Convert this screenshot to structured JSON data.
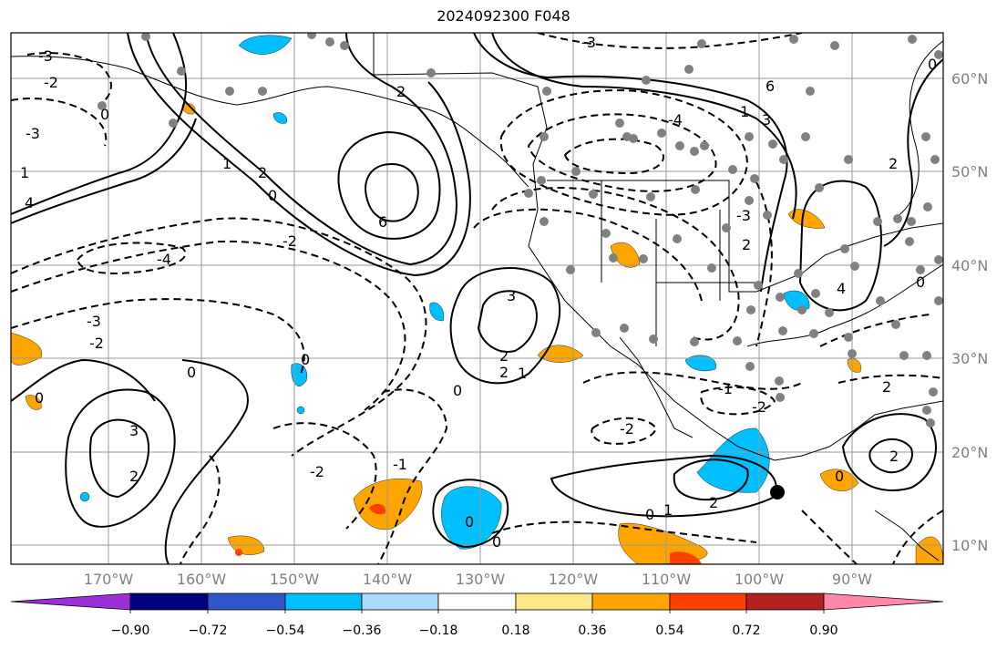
{
  "title": "2024092300 F048",
  "lat_labels": [
    "60°N",
    "50°N",
    "40°N",
    "30°N",
    "20°N",
    "10°N"
  ],
  "lon_labels": [
    "170°W",
    "160°W",
    "150°W",
    "140°W",
    "130°W",
    "120°W",
    "110°W",
    "100°W",
    "90°W"
  ],
  "colorbar": {
    "ticks": [
      "−0.90",
      "−0.72",
      "−0.54",
      "−0.36",
      "−0.18",
      "0.18",
      "0.36",
      "0.54",
      "0.72",
      "0.90"
    ],
    "colors": [
      "#9b30d9",
      "#000080",
      "#3355cc",
      "#00bfff",
      "#add8ff",
      "#ffffff",
      "#ffe88a",
      "#ffa500",
      "#ff4000",
      "#b22222",
      "#ff88aa"
    ]
  },
  "contour_labels": [
    "-3",
    "-2",
    "-1",
    "0",
    "1",
    "2",
    "3",
    "4",
    "6",
    "-4"
  ],
  "palette": {
    "land": "#000000",
    "grid": "#999999",
    "station": "#808080",
    "pos_fill": "#ffa500",
    "neg_fill": "#00bfff"
  }
}
